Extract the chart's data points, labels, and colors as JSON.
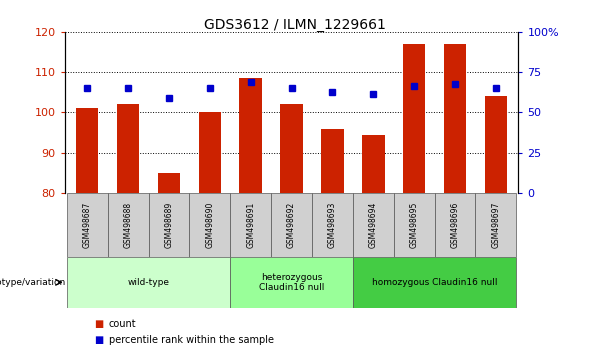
{
  "title": "GDS3612 / ILMN_1229661",
  "samples": [
    "GSM498687",
    "GSM498688",
    "GSM498689",
    "GSM498690",
    "GSM498691",
    "GSM498692",
    "GSM498693",
    "GSM498694",
    "GSM498695",
    "GSM498696",
    "GSM498697"
  ],
  "bar_values": [
    101,
    102,
    85,
    100,
    108.5,
    102,
    96,
    94.5,
    117,
    117,
    104
  ],
  "bar_base": 80,
  "blue_values": [
    106,
    106,
    103.5,
    106,
    107.5,
    106,
    105,
    104.5,
    106.5,
    107,
    106
  ],
  "ylim": [
    80,
    120
  ],
  "yticks_left": [
    80,
    90,
    100,
    110,
    120
  ],
  "yticks_right": [
    0,
    25,
    50,
    75,
    100
  ],
  "bar_color": "#cc2200",
  "blue_color": "#0000cc",
  "groups": [
    {
      "label": "wild-type",
      "start": 0,
      "end": 3,
      "color": "#ccffcc"
    },
    {
      "label": "heterozygous\nClaudin16 null",
      "start": 4,
      "end": 6,
      "color": "#99ff99"
    },
    {
      "label": "homozygous Claudin16 null",
      "start": 7,
      "end": 10,
      "color": "#44cc44"
    }
  ],
  "legend_count_label": "count",
  "legend_pct_label": "percentile rank within the sample",
  "genotype_label": "genotype/variation"
}
